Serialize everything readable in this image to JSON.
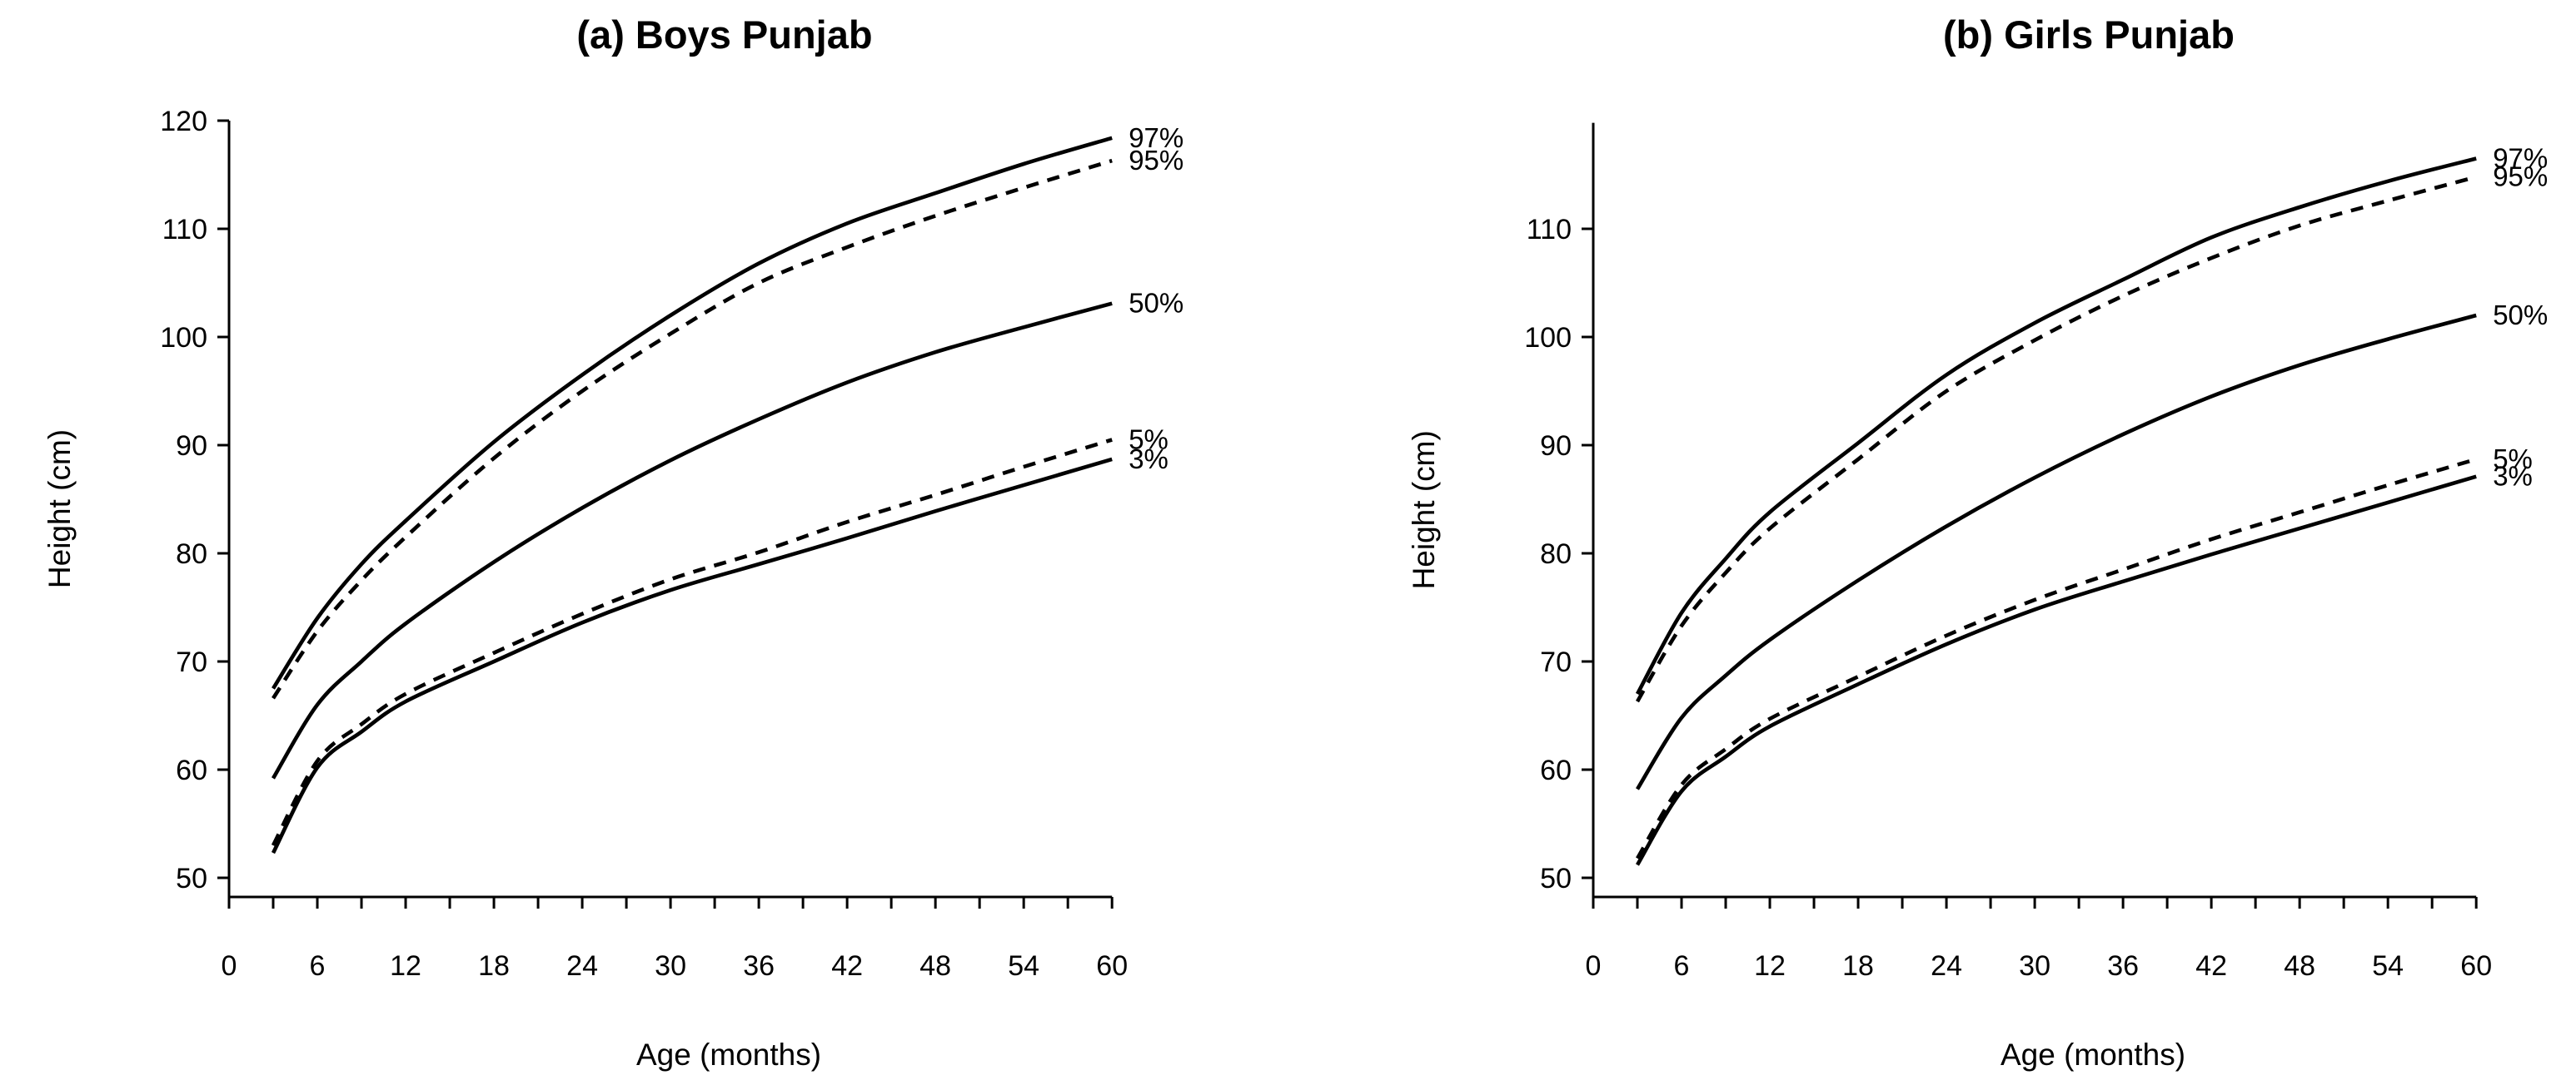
{
  "figure": {
    "background": "#ffffff",
    "line_color": "#000000"
  },
  "chart_data": [
    {
      "type": "line",
      "title": "(a) Boys Punjab",
      "xlabel": "Age (months)",
      "ylabel": "Height (cm)",
      "x": [
        3,
        6,
        9,
        12,
        18,
        24,
        30,
        36,
        42,
        48,
        54,
        60
      ],
      "series": [
        {
          "name": "97%",
          "line": "solid",
          "values": [
            67.5,
            74.0,
            79.0,
            83.0,
            90.3,
            96.5,
            102.0,
            106.8,
            110.5,
            113.3,
            116.0,
            118.4
          ]
        },
        {
          "name": "95%",
          "line": "dashed",
          "values": [
            66.6,
            72.8,
            77.5,
            81.5,
            88.8,
            95.0,
            100.3,
            105.0,
            108.3,
            111.2,
            113.8,
            116.3
          ]
        },
        {
          "name": "50%",
          "line": "solid",
          "values": [
            59.2,
            66.0,
            70.0,
            73.5,
            79.2,
            84.2,
            88.6,
            92.4,
            95.8,
            98.6,
            100.9,
            103.1
          ]
        },
        {
          "name": "5%",
          "line": "dashed",
          "values": [
            53.0,
            60.8,
            64.2,
            67.0,
            70.8,
            74.4,
            77.6,
            80.1,
            82.9,
            85.4,
            88.0,
            90.5
          ]
        },
        {
          "name": "3%",
          "line": "solid",
          "values": [
            52.3,
            60.2,
            63.5,
            66.3,
            70.0,
            73.6,
            76.6,
            79.0,
            81.4,
            83.9,
            86.3,
            88.7
          ]
        }
      ],
      "xlim": [
        0,
        60
      ],
      "x_major_ticks": [
        0,
        6,
        12,
        18,
        24,
        30,
        36,
        42,
        48,
        54,
        60
      ],
      "x_minor_step": 3,
      "y_ticks": [
        50,
        60,
        70,
        80,
        90,
        100,
        110,
        120
      ],
      "ylim": [
        48.2,
        120
      ],
      "grid": false,
      "legend_position": "curve-end-labels-right"
    },
    {
      "type": "line",
      "title": "(b) Girls Punjab",
      "xlabel": "Age (months)",
      "ylabel": "Height (cm)",
      "x": [
        3,
        6,
        9,
        12,
        18,
        24,
        30,
        36,
        42,
        48,
        54,
        60
      ],
      "series": [
        {
          "name": "97%",
          "line": "solid",
          "values": [
            67.0,
            74.5,
            79.5,
            83.8,
            90.2,
            96.5,
            101.3,
            105.3,
            109.2,
            112.0,
            114.4,
            116.5
          ]
        },
        {
          "name": "95%",
          "line": "dashed",
          "values": [
            66.3,
            73.3,
            78.2,
            82.3,
            88.7,
            95.0,
            99.7,
            103.8,
            107.3,
            110.3,
            112.6,
            114.8
          ]
        },
        {
          "name": "50%",
          "line": "solid",
          "values": [
            58.2,
            64.8,
            68.7,
            72.0,
            77.5,
            82.5,
            87.0,
            91.0,
            94.5,
            97.4,
            99.8,
            102.0
          ]
        },
        {
          "name": "5%",
          "line": "dashed",
          "values": [
            51.8,
            58.6,
            61.9,
            64.7,
            68.6,
            72.4,
            75.7,
            78.5,
            81.3,
            83.8,
            86.3,
            88.7
          ]
        },
        {
          "name": "3%",
          "line": "solid",
          "values": [
            51.2,
            58.0,
            61.2,
            64.0,
            67.9,
            71.6,
            74.8,
            77.4,
            79.9,
            82.3,
            84.7,
            87.1
          ]
        }
      ],
      "xlim": [
        0,
        60
      ],
      "x_major_ticks": [
        0,
        6,
        12,
        18,
        24,
        30,
        36,
        42,
        48,
        54,
        60
      ],
      "x_minor_step": 3,
      "y_ticks": [
        50,
        60,
        70,
        80,
        90,
        100,
        110
      ],
      "ylim": [
        48.2,
        119.8
      ],
      "grid": false,
      "legend_position": "curve-end-labels-right"
    }
  ]
}
